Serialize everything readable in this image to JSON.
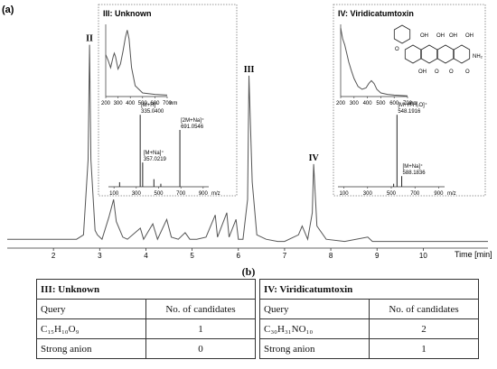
{
  "chart_data": {
    "type": "line",
    "panel_label": "(a)",
    "xlabel": "Time [min]",
    "xlim": [
      1.0,
      11.4
    ],
    "x_ticks": [
      2,
      3,
      4,
      5,
      6,
      7,
      8,
      9,
      10
    ],
    "ylim": [
      0,
      100
    ],
    "series": [
      {
        "x": [
          1.0,
          1.5,
          2.0,
          2.5,
          2.65,
          2.75,
          2.78,
          2.81,
          2.9,
          2.95,
          3.05,
          3.2,
          3.3,
          3.36,
          3.5,
          3.6,
          3.88,
          3.95,
          4.15,
          4.25,
          4.45,
          4.55,
          4.7,
          4.85,
          4.95,
          5.1,
          5.3,
          5.5,
          5.55,
          5.75,
          5.8,
          5.95,
          6.0,
          6.1,
          6.2,
          6.23,
          6.3,
          6.4,
          6.6,
          6.85,
          7.0,
          7.3,
          7.38,
          7.5,
          7.6,
          7.63,
          7.7,
          7.9,
          8.3,
          8.8,
          8.9,
          9.3,
          9.8,
          10.2,
          10.8,
          11.4
        ],
        "y": [
          4,
          4,
          4,
          4,
          6,
          40,
          92,
          40,
          8,
          6,
          4,
          14,
          22,
          12,
          5,
          4,
          9,
          4,
          11,
          4,
          13,
          5,
          4,
          7,
          4,
          4,
          5,
          15,
          5,
          16,
          5,
          13,
          4,
          4,
          22,
          78,
          30,
          6,
          4,
          3,
          3,
          6,
          10,
          4,
          16,
          38,
          10,
          4,
          3,
          5,
          3,
          3,
          3,
          3,
          3,
          3
        ]
      }
    ],
    "peaks": [
      {
        "label": "II",
        "x": 2.78,
        "y": 92
      },
      {
        "label": "III",
        "x": 6.23,
        "y": 78
      },
      {
        "label": "IV",
        "x": 7.63,
        "y": 38
      }
    ],
    "insets": [
      {
        "title": "III: Unknown",
        "uv": {
          "xlabel": "nm",
          "x_ticks": [
            200,
            300,
            400,
            500,
            600,
            700
          ],
          "x": [
            200,
            220,
            240,
            260,
            270,
            280,
            300,
            320,
            340,
            360,
            375,
            390,
            410,
            440,
            500,
            600,
            700
          ],
          "y": [
            58,
            50,
            40,
            55,
            60,
            55,
            38,
            45,
            62,
            82,
            92,
            80,
            40,
            15,
            5,
            3,
            2
          ]
        },
        "ms": {
          "xlabel": "m/z",
          "x_ticks": [
            100,
            300,
            500,
            700,
            900
          ],
          "peaks": [
            {
              "mz": 335.04,
              "label": "[M+H]⁺",
              "value_label": "335.0400",
              "intensity": 95
            },
            {
              "mz": 357.0219,
              "label": "[M+Na]⁺",
              "value_label": "357.0219",
              "intensity": 32
            },
            {
              "mz": 691.0546,
              "label": "[2M+Na]⁺",
              "value_label": "691.0546",
              "intensity": 75
            },
            {
              "mz": 150,
              "intensity": 6
            },
            {
              "mz": 458,
              "intensity": 10
            },
            {
              "mz": 520,
              "intensity": 4
            }
          ]
        }
      },
      {
        "title": "IV: Viridicatumtoxin",
        "structure_labels": [
          "OH",
          "OH",
          "O",
          "OH",
          "OH",
          "O",
          "OH",
          "O",
          "NH₂",
          "O"
        ],
        "uv": {
          "xlabel": "nm",
          "x_ticks": [
            200,
            300,
            400,
            500,
            600,
            700
          ],
          "x": [
            200,
            215,
            230,
            245,
            260,
            280,
            300,
            330,
            360,
            390,
            410,
            430,
            450,
            470,
            500,
            550,
            600,
            700
          ],
          "y": [
            95,
            80,
            72,
            60,
            48,
            36,
            25,
            14,
            10,
            12,
            18,
            22,
            18,
            10,
            5,
            3,
            2,
            1
          ]
        },
        "ms": {
          "xlabel": "m/z",
          "x_ticks": [
            100,
            300,
            500,
            700,
            900
          ],
          "peaks": [
            {
              "mz": 548.1916,
              "label": "[M+H-H₂O]⁺",
              "value_label": "548.1916",
              "intensity": 95
            },
            {
              "mz": 588.1836,
              "label": "[M+Na]⁺",
              "value_label": "588.1836",
              "intensity": 14
            },
            {
              "mz": 520,
              "intensity": 4
            }
          ]
        }
      }
    ]
  },
  "table": {
    "title": "(b)",
    "left": {
      "heading": "III: Unknown",
      "columns": [
        "Query",
        "No. of candidates"
      ],
      "rows": [
        {
          "query": "C₁₅H₁₀O₉",
          "count": "1"
        },
        {
          "query": "Strong anion",
          "count": "0"
        }
      ]
    },
    "right": {
      "heading": "IV: Viridicatumtoxin",
      "columns": [
        "Query",
        "No. of candidates"
      ],
      "rows": [
        {
          "query": "C₃₀H₃₁NO₁₀",
          "count": "2"
        },
        {
          "query": "Strong anion",
          "count": "1"
        }
      ]
    }
  }
}
